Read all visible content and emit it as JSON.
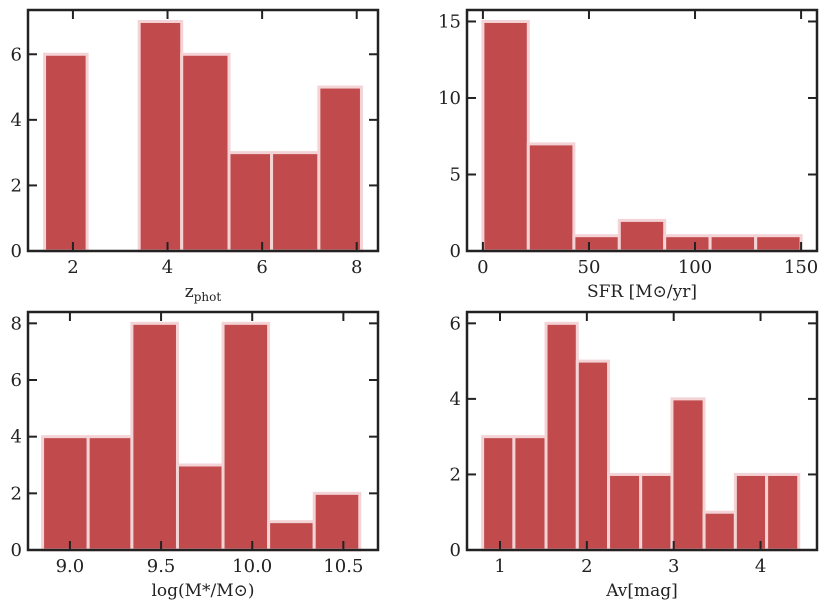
{
  "style": {
    "bar_color": "#c04a4c",
    "bar_edge": "#f4d3d6",
    "axis_color": "#222222"
  },
  "chart_data": [
    {
      "id": "zphot",
      "type": "bar",
      "title": "",
      "xlabel": "zphot",
      "xlabel_main": "z",
      "xlabel_sub": "phot",
      "ylabel": "",
      "xlim": [
        1.05,
        8.45
      ],
      "ylim": [
        0,
        7.35
      ],
      "xticks": [
        2,
        4,
        6,
        8
      ],
      "xtick_labels": [
        "2",
        "4",
        "6",
        "8"
      ],
      "yticks": [
        0,
        2,
        4,
        6
      ],
      "ytick_labels": [
        "0",
        "2",
        "4",
        "6"
      ],
      "bars": [
        {
          "left": 1.4,
          "right": 2.3,
          "value": 6
        },
        {
          "left": 2.3,
          "right": 3.2,
          "value": 0
        },
        {
          "left": 3.4,
          "right": 4.3,
          "value": 7
        },
        {
          "left": 4.3,
          "right": 5.3,
          "value": 6
        },
        {
          "left": 5.3,
          "right": 6.2,
          "value": 3
        },
        {
          "left": 6.2,
          "right": 7.2,
          "value": 3
        },
        {
          "left": 7.2,
          "right": 8.1,
          "value": 5
        }
      ]
    },
    {
      "id": "sfr",
      "type": "bar",
      "title": "",
      "xlabel": "SFR [M⊙/yr]",
      "xlabel_main": "SFR [M⊙/yr]",
      "xlabel_sub": "",
      "ylabel": "",
      "xlim": [
        -7.5,
        157.5
      ],
      "ylim": [
        0,
        15.75
      ],
      "xticks": [
        0,
        50,
        100,
        150
      ],
      "xtick_labels": [
        "0",
        "50",
        "100",
        "150"
      ],
      "yticks": [
        0,
        5,
        10,
        15
      ],
      "ytick_labels": [
        "0",
        "5",
        "10",
        "15"
      ],
      "bars": [
        {
          "left": 0,
          "right": 21.4,
          "value": 15
        },
        {
          "left": 21.4,
          "right": 42.9,
          "value": 7
        },
        {
          "left": 42.9,
          "right": 64.3,
          "value": 1
        },
        {
          "left": 64.3,
          "right": 85.7,
          "value": 2
        },
        {
          "left": 85.7,
          "right": 107.1,
          "value": 1
        },
        {
          "left": 107.1,
          "right": 128.6,
          "value": 1
        },
        {
          "left": 128.6,
          "right": 150,
          "value": 1
        }
      ]
    },
    {
      "id": "mass",
      "type": "bar",
      "title": "",
      "xlabel": "log(M*/M⊙)",
      "xlabel_main": "log(M*/M⊙)",
      "xlabel_sub": "",
      "ylabel": "",
      "xlim": [
        8.77,
        10.69
      ],
      "ylim": [
        0,
        8.4
      ],
      "xticks": [
        9.0,
        9.5,
        10.0,
        10.5
      ],
      "xtick_labels": [
        "9.0",
        "9.5",
        "10.0",
        "10.5"
      ],
      "yticks": [
        0,
        2,
        4,
        6,
        8
      ],
      "ytick_labels": [
        "0",
        "2",
        "4",
        "6",
        "8"
      ],
      "bars": [
        {
          "left": 8.85,
          "right": 9.1,
          "value": 4
        },
        {
          "left": 9.1,
          "right": 9.34,
          "value": 4
        },
        {
          "left": 9.34,
          "right": 9.59,
          "value": 8
        },
        {
          "left": 9.59,
          "right": 9.84,
          "value": 3
        },
        {
          "left": 9.84,
          "right": 10.09,
          "value": 8
        },
        {
          "left": 10.09,
          "right": 10.34,
          "value": 1
        },
        {
          "left": 10.34,
          "right": 10.59,
          "value": 2
        }
      ]
    },
    {
      "id": "av",
      "type": "bar",
      "title": "",
      "xlabel": "Av[mag]",
      "xlabel_main": "Av[mag]",
      "xlabel_sub": "",
      "ylabel": "",
      "xlim": [
        0.62,
        4.65
      ],
      "ylim": [
        0,
        6.3
      ],
      "xticks": [
        1,
        2,
        3,
        4
      ],
      "xtick_labels": [
        "1",
        "2",
        "3",
        "4"
      ],
      "yticks": [
        0,
        2,
        4,
        6
      ],
      "ytick_labels": [
        "0",
        "2",
        "4",
        "6"
      ],
      "bars": [
        {
          "left": 0.8,
          "right": 1.16,
          "value": 3
        },
        {
          "left": 1.16,
          "right": 1.53,
          "value": 3
        },
        {
          "left": 1.53,
          "right": 1.89,
          "value": 6
        },
        {
          "left": 1.89,
          "right": 2.25,
          "value": 5
        },
        {
          "left": 2.25,
          "right": 2.62,
          "value": 2
        },
        {
          "left": 2.62,
          "right": 2.98,
          "value": 2
        },
        {
          "left": 2.98,
          "right": 3.35,
          "value": 4
        },
        {
          "left": 3.35,
          "right": 3.71,
          "value": 1
        },
        {
          "left": 3.71,
          "right": 4.07,
          "value": 2
        },
        {
          "left": 4.07,
          "right": 4.44,
          "value": 2
        }
      ]
    }
  ]
}
